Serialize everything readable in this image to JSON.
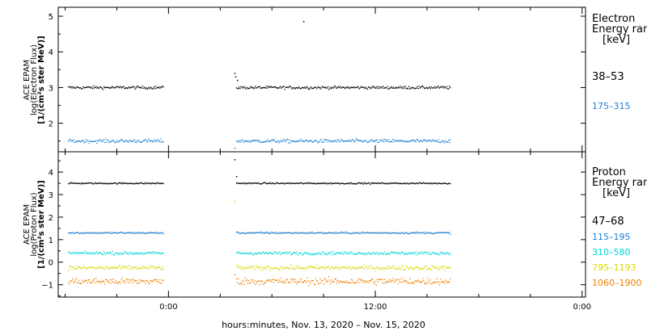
{
  "xlabel": "hours:minutes, Nov. 13, 2020 – Nov. 15, 2020",
  "x_ticks": [
    {
      "label": "0:00",
      "hours": 0
    },
    {
      "label": "12:00",
      "hours": 12
    },
    {
      "label": "0:00",
      "hours": 24
    }
  ],
  "colors": {
    "black": "#000000",
    "blue": "#1f7fd0",
    "cyan": "#00d6d6",
    "yellow": "#d8d800",
    "orange": "#f08000"
  },
  "chart_data": [
    {
      "type": "scatter",
      "panel": "electron",
      "ylabel_lines": [
        "ACE EPAM",
        "log(Electron Flux)",
        "[1/(cm²s ster MeV)]"
      ],
      "legend_title_lines": [
        "Electron",
        "Energy ran",
        "[keV]"
      ],
      "xlim_hours": [
        -6.4,
        24.2
      ],
      "ylim": [
        1.2,
        5.25
      ],
      "yticks": [
        2,
        3,
        4,
        5
      ],
      "data_gap_hours": [
        -0.2,
        3.9
      ],
      "series": [
        {
          "name": "38–53",
          "color": "#000000",
          "level": 3.0,
          "noise": 0.04,
          "segments": [
            [
              -5.8,
              -0.3
            ],
            [
              3.95,
              16.4
            ]
          ],
          "extra_points": [
            {
              "x": 3.85,
              "y": 3.4
            },
            {
              "x": 3.9,
              "y": 3.3
            },
            {
              "x": 4.0,
              "y": 3.2
            },
            {
              "x": 7.85,
              "y": 4.85
            }
          ]
        },
        {
          "name": "175–315",
          "color": "#1f7fd0",
          "level": 1.5,
          "noise": 0.05,
          "segments": [
            [
              -5.8,
              -0.3
            ],
            [
              3.95,
              16.4
            ]
          ],
          "extra_points": [
            {
              "x": 3.85,
              "y": 1.3
            }
          ]
        }
      ]
    },
    {
      "type": "scatter",
      "panel": "proton",
      "ylabel_lines": [
        "ACE EPAM",
        "log(Proton Flux)",
        "[1/(cm²s ster MeV)]"
      ],
      "legend_title_lines": [
        "Proton",
        "Energy ran",
        "[keV]"
      ],
      "xlim_hours": [
        -6.4,
        24.2
      ],
      "ylim": [
        -1.55,
        4.9
      ],
      "yticks": [
        -1,
        0,
        1,
        2,
        3,
        4
      ],
      "data_gap_hours": [
        -0.2,
        3.9
      ],
      "series": [
        {
          "name": "47–68",
          "color": "#000000",
          "level": 3.5,
          "noise": 0.03,
          "segments": [
            [
              -5.8,
              -0.3
            ],
            [
              3.95,
              16.4
            ]
          ],
          "extra_points": [
            {
              "x": 3.85,
              "y": 4.55
            },
            {
              "x": 3.95,
              "y": 3.8
            }
          ]
        },
        {
          "name": "115–195",
          "color": "#1f7fd0",
          "level": 1.3,
          "noise": 0.04,
          "segments": [
            [
              -5.8,
              -0.3
            ],
            [
              3.95,
              16.4
            ]
          ],
          "extra_points": []
        },
        {
          "name": "310–580",
          "color": "#00d6d6",
          "level": 0.4,
          "noise": 0.07,
          "segments": [
            [
              -5.8,
              -0.3
            ],
            [
              3.95,
              16.4
            ]
          ],
          "extra_points": []
        },
        {
          "name": "795–1193",
          "color": "#d8d800",
          "level": -0.25,
          "noise": 0.1,
          "segments": [
            [
              -5.8,
              -0.3
            ],
            [
              3.95,
              16.4
            ]
          ],
          "extra_points": [
            {
              "x": 3.85,
              "y": 2.7
            }
          ]
        },
        {
          "name": "1060–1900",
          "color": "#f08000",
          "level": -0.85,
          "noise": 0.15,
          "segments": [
            [
              -5.8,
              -0.3
            ],
            [
              3.95,
              16.4
            ]
          ],
          "extra_points": [
            {
              "x": 3.85,
              "y": -0.55
            }
          ]
        }
      ]
    }
  ]
}
